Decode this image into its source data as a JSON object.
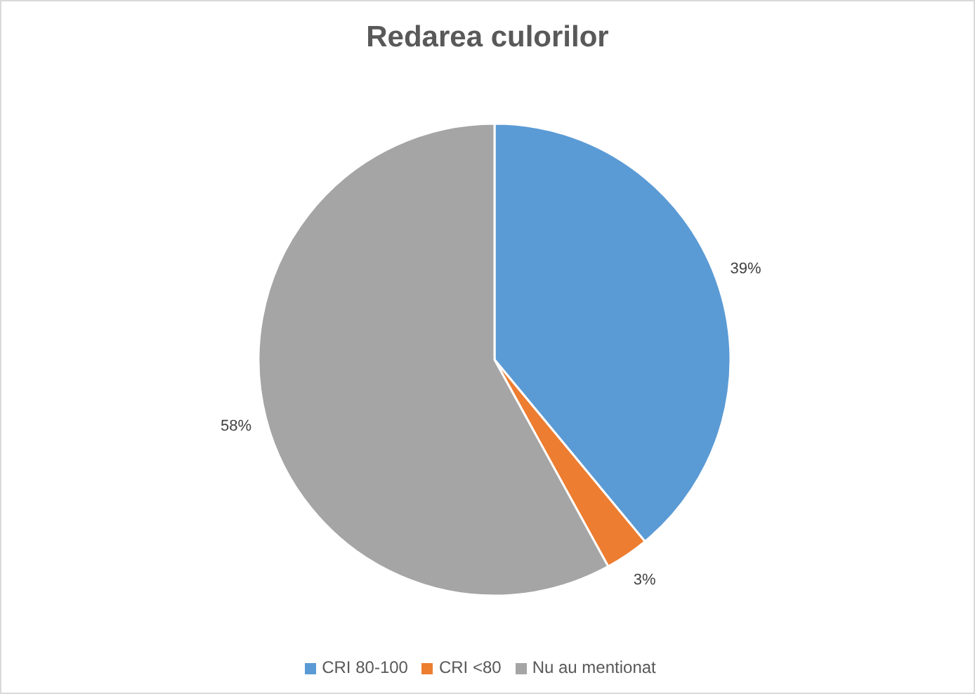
{
  "chart_data": {
    "type": "pie",
    "title": "Redarea culorilor",
    "categories": [
      "CRI 80-100",
      "CRI <80",
      "Nu au mentionat"
    ],
    "values": [
      39,
      3,
      58
    ],
    "colors": [
      "#5b9bd5",
      "#ed7d31",
      "#a5a5a5"
    ],
    "value_labels": [
      "39%",
      "3%",
      "58%"
    ],
    "legend": "bottom"
  }
}
